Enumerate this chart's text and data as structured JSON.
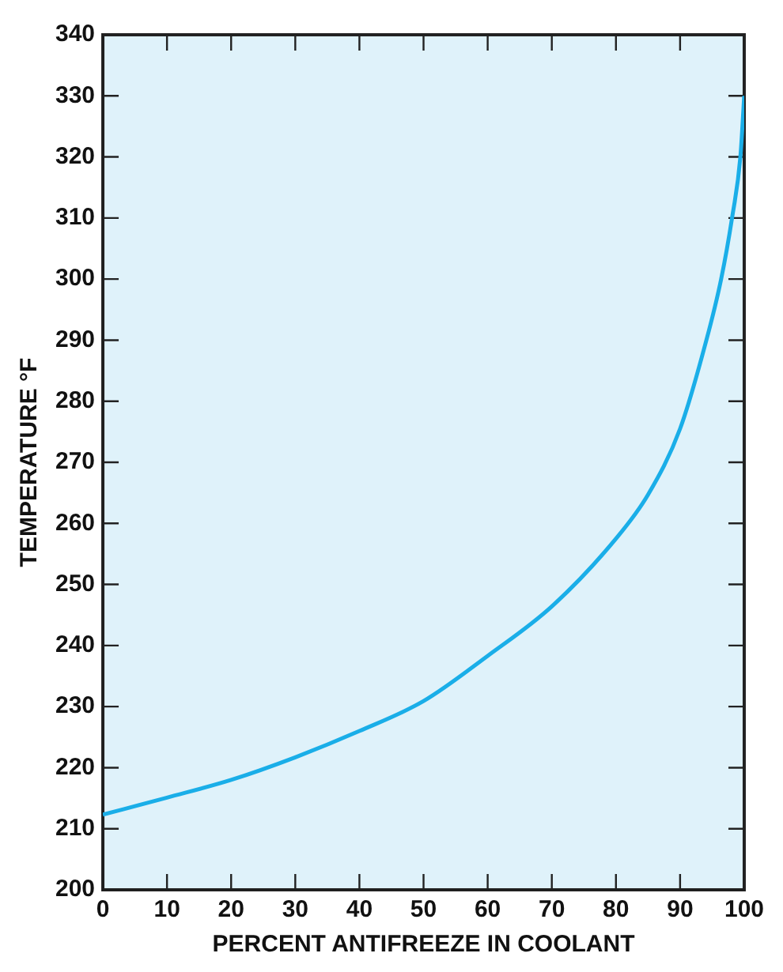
{
  "chart_data": {
    "type": "line",
    "xlabel": "PERCENT ANTIFREEZE IN COOLANT",
    "ylabel": "TEMPERATURE °F",
    "x": [
      0,
      10,
      20,
      30,
      40,
      50,
      60,
      70,
      80,
      85,
      90,
      94.1,
      96.4,
      98.1,
      99.4,
      100
    ],
    "series": [
      {
        "color": "#1aaee8",
        "values": [
          212.3,
          215.1,
          218,
          221.7,
          226,
          230.9,
          238.3,
          246.4,
          257.5,
          264.7,
          275.5,
          290,
          300,
          310,
          320,
          330
        ]
      }
    ],
    "xlim": [
      0,
      100
    ],
    "xticks": [
      0,
      10,
      20,
      30,
      40,
      50,
      60,
      70,
      80,
      90,
      100
    ],
    "ylim": [
      200,
      340
    ],
    "yticks": [
      200,
      210,
      220,
      230,
      240,
      250,
      260,
      270,
      280,
      290,
      300,
      310,
      320,
      330,
      340
    ],
    "grid": false,
    "legend": false,
    "marker": "none",
    "line_style": "solid"
  }
}
